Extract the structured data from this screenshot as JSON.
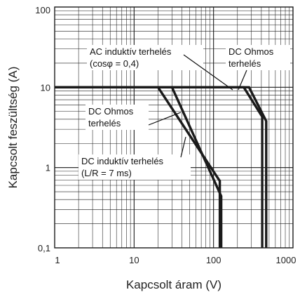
{
  "chart_data": {
    "type": "line",
    "x_scale": "log",
    "y_scale": "log",
    "xlim": [
      1,
      1000
    ],
    "ylim": [
      0.1,
      100
    ],
    "grid": true,
    "xlabel": "Kapcsolt áram (V)",
    "ylabel": "Kapcsolt feszültség (A)",
    "x_ticks": [
      "1",
      "10",
      "100",
      "1000"
    ],
    "y_ticks": [
      "0,1",
      "1",
      "10",
      "100"
    ],
    "series": [
      {
        "id": "dc-inductive",
        "points": [
          [
            1,
            10
          ],
          [
            20,
            10
          ],
          [
            120,
            0.68
          ],
          [
            120,
            0.1
          ]
        ]
      },
      {
        "id": "dc-ohmic",
        "points": [
          [
            1,
            10
          ],
          [
            30,
            10
          ],
          [
            125,
            0.44
          ],
          [
            125,
            0.1
          ]
        ]
      },
      {
        "id": "ac-inductive",
        "points": [
          [
            1,
            10
          ],
          [
            240,
            10
          ],
          [
            410,
            4.3
          ],
          [
            410,
            0.1
          ]
        ]
      },
      {
        "id": "dc-ohmic-ac-region",
        "points": [
          [
            1,
            10
          ],
          [
            280,
            10
          ],
          [
            460,
            3.8
          ],
          [
            460,
            0.1
          ]
        ]
      }
    ],
    "annotations": [
      {
        "id": "ac-inductive-label",
        "lines": [
          "AC induktív terhelés",
          "(cosφ = 0,4)"
        ]
      },
      {
        "id": "dc-ohmic-right-label",
        "lines": [
          "DC Ohmos",
          "terhelés"
        ]
      },
      {
        "id": "dc-ohmic-left-label",
        "lines": [
          "DC Ohmos",
          "terhelés"
        ]
      },
      {
        "id": "dc-inductive-label",
        "lines": [
          "DC induktív terhelés",
          "(L/R = 7 ms)"
        ]
      }
    ],
    "line_color": "#1a1a1a"
  }
}
